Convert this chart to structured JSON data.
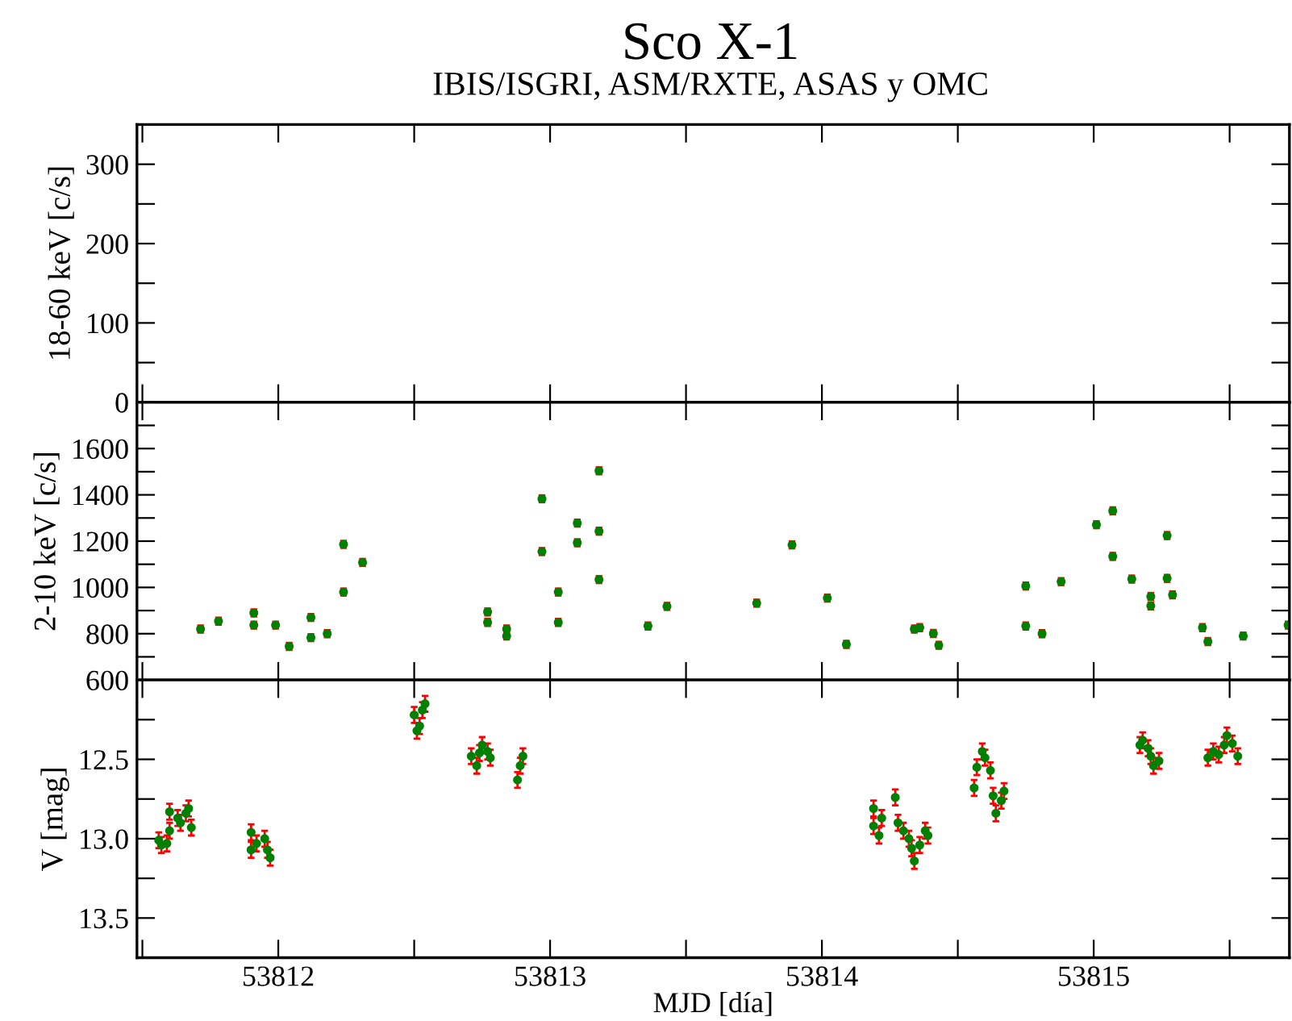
{
  "chart_data": [
    {
      "type": "scatter",
      "title": "Sco X-1",
      "subtitle": "IBIS/ISGRI, ASM/RXTE, ASAS y OMC",
      "ylabel": "18-60 keV [c/s]",
      "xlim": [
        53811.48,
        53815.72
      ],
      "ylim": [
        0,
        350
      ],
      "xticks": [
        {
          "value": 53811.5,
          "label": null
        },
        {
          "value": 53812,
          "label": null
        },
        {
          "value": 53812.5,
          "label": null
        },
        {
          "value": 53813,
          "label": null
        },
        {
          "value": 53813.5,
          "label": null
        },
        {
          "value": 53814,
          "label": null
        },
        {
          "value": 53814.5,
          "label": null
        },
        {
          "value": 53815,
          "label": null
        },
        {
          "value": 53815.5,
          "label": null
        }
      ],
      "yticks": [
        0,
        {
          "value": 50,
          "label": null
        },
        100,
        {
          "value": 150,
          "label": null
        },
        200,
        {
          "value": 250,
          "label": null
        },
        300
      ],
      "tick_labels": "y"
    },
    {
      "type": "scatter",
      "ylabel": "2-10 keV [c/s]",
      "xlim": [
        53811.48,
        53815.72
      ],
      "ylim": [
        600,
        1800
      ],
      "xticks": [
        {
          "value": 53811.5,
          "label": null
        },
        {
          "value": 53812,
          "label": null
        },
        {
          "value": 53812.5,
          "label": null
        },
        {
          "value": 53813,
          "label": null
        },
        {
          "value": 53813.5,
          "label": null
        },
        {
          "value": 53814,
          "label": null
        },
        {
          "value": 53814.5,
          "label": null
        },
        {
          "value": 53815,
          "label": null
        },
        {
          "value": 53815.5,
          "label": null
        }
      ],
      "yticks": [
        600,
        {
          "value": 700,
          "label": null
        },
        800,
        {
          "value": 900,
          "label": null
        },
        1000,
        {
          "value": 1100,
          "label": null
        },
        1200,
        {
          "value": 1300,
          "label": null
        },
        1400,
        {
          "value": 1500,
          "label": null
        },
        1600,
        {
          "value": 1700,
          "label": null
        }
      ],
      "tick_labels": "y",
      "marker": "circle",
      "series": [
        {
          "color": "#008000",
          "x": [
            53811.714,
            53811.78,
            53811.91,
            53811.91,
            53811.99,
            53812.04,
            53812.12,
            53812.12,
            53812.18,
            53812.24,
            53812.24,
            53812.31,
            53812.77,
            53812.77,
            53812.84,
            53812.84,
            53812.97,
            53812.97,
            53813.03,
            53813.03,
            53813.1,
            53813.1,
            53813.18,
            53813.18,
            53813.18,
            53813.36,
            53813.43,
            53813.76,
            53813.89,
            53814.02,
            53814.09,
            53814.34,
            53814.36,
            53814.41,
            53814.43,
            53814.75,
            53814.75,
            53814.81,
            53814.88,
            53815.01,
            53815.07,
            53815.07,
            53815.14,
            53815.21,
            53815.21,
            53815.27,
            53815.27,
            53815.29,
            53815.4,
            53815.42,
            53815.55,
            53815.715
          ],
          "values": [
            820,
            854,
            890,
            837,
            837,
            745,
            870,
            783,
            800,
            980,
            1186,
            1108,
            894,
            849,
            820,
            790,
            1383,
            1155,
            980,
            849,
            1278,
            1193,
            1504,
            1243,
            1034,
            833,
            918,
            932,
            1184,
            954,
            754,
            820,
            826,
            801,
            750,
            1006,
            833,
            800,
            1025,
            1271,
            1331,
            1134,
            1036,
            961,
            920,
            1224,
            1039,
            968,
            826,
            766,
            790,
            837
          ],
          "errors": [
            15,
            15,
            15,
            15,
            15,
            15,
            15,
            15,
            15,
            15,
            15,
            15,
            15,
            15,
            15,
            15,
            15,
            15,
            15,
            15,
            15,
            15,
            15,
            15,
            15,
            15,
            15,
            15,
            15,
            15,
            15,
            15,
            15,
            15,
            15,
            15,
            15,
            15,
            15,
            15,
            15,
            15,
            15,
            15,
            15,
            15,
            15,
            15,
            15,
            15,
            15,
            15
          ]
        }
      ]
    },
    {
      "type": "scatter",
      "xlabel": "MJD [día]",
      "ylabel": "V [mag]",
      "xlim": [
        53811.48,
        53815.72
      ],
      "ylim": [
        13.75,
        12.0
      ],
      "xticks": [
        {
          "value": 53811.5,
          "label": null
        },
        53812,
        {
          "value": 53812.5,
          "label": null
        },
        53813,
        {
          "value": 53813.5,
          "label": null
        },
        53814,
        {
          "value": 53814.5,
          "label": null
        },
        53815,
        {
          "value": 53815.5,
          "label": null
        }
      ],
      "yticks": [
        {
          "value": 12.25,
          "label": null
        },
        12.5,
        {
          "value": 12.75,
          "label": null
        },
        {
          "value": 13,
          "label": "13.0"
        },
        {
          "value": 13.25,
          "label": null
        },
        13.5
      ],
      "marker": "circle",
      "series": [
        {
          "color": "#008000",
          "x": [
            53811.56,
            53811.57,
            53811.59,
            53811.6,
            53811.6,
            53811.63,
            53811.64,
            53811.66,
            53811.67,
            53811.68,
            53811.9,
            53811.9,
            53811.92,
            53811.95,
            53811.96,
            53811.97,
            53812.5,
            53812.51,
            53812.52,
            53812.53,
            53812.54,
            53812.71,
            53812.73,
            53812.74,
            53812.75,
            53812.77,
            53812.78,
            53812.88,
            53812.89,
            53812.9,
            53814.19,
            53814.19,
            53814.21,
            53814.22,
            53814.27,
            53814.28,
            53814.3,
            53814.32,
            53814.33,
            53814.34,
            53814.36,
            53814.38,
            53814.39,
            53814.56,
            53814.57,
            53814.59,
            53814.6,
            53814.62,
            53814.63,
            53814.64,
            53814.66,
            53814.67,
            53815.17,
            53815.18,
            53815.2,
            53815.21,
            53815.22,
            53815.24,
            53815.42,
            53815.44,
            53815.46,
            53815.48,
            53815.49,
            53815.51,
            53815.53
          ],
          "values": [
            13.01,
            13.04,
            13.03,
            12.83,
            12.95,
            12.87,
            12.9,
            12.84,
            12.81,
            12.93,
            13.07,
            12.96,
            13.03,
            13.0,
            13.07,
            13.12,
            12.22,
            12.32,
            12.29,
            12.19,
            12.15,
            12.48,
            12.54,
            12.46,
            12.41,
            12.45,
            12.49,
            12.63,
            12.54,
            12.48,
            12.81,
            12.92,
            12.98,
            12.87,
            12.74,
            12.9,
            12.95,
            13.0,
            13.06,
            13.14,
            13.04,
            12.95,
            12.98,
            12.68,
            12.55,
            12.45,
            12.49,
            12.57,
            12.73,
            12.84,
            12.76,
            12.7,
            12.41,
            12.38,
            12.43,
            12.48,
            12.54,
            12.51,
            12.49,
            12.45,
            12.47,
            12.41,
            12.35,
            12.4,
            12.48
          ],
          "errors": [
            0.05,
            0.05,
            0.05,
            0.05,
            0.05,
            0.05,
            0.05,
            0.05,
            0.05,
            0.05,
            0.05,
            0.05,
            0.05,
            0.05,
            0.05,
            0.05,
            0.05,
            0.05,
            0.05,
            0.05,
            0.05,
            0.05,
            0.05,
            0.05,
            0.05,
            0.05,
            0.05,
            0.05,
            0.05,
            0.05,
            0.05,
            0.05,
            0.05,
            0.05,
            0.05,
            0.05,
            0.05,
            0.05,
            0.05,
            0.05,
            0.05,
            0.05,
            0.05,
            0.05,
            0.05,
            0.05,
            0.05,
            0.05,
            0.05,
            0.05,
            0.05,
            0.05,
            0.05,
            0.05,
            0.05,
            0.05,
            0.05,
            0.05,
            0.05,
            0.05,
            0.05,
            0.05,
            0.05,
            0.05,
            0.05
          ]
        }
      ]
    }
  ]
}
